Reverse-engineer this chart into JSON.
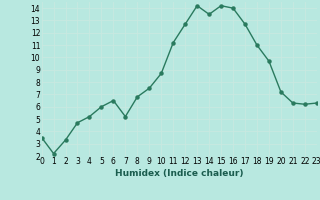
{
  "x": [
    0,
    1,
    2,
    3,
    4,
    5,
    6,
    7,
    8,
    9,
    10,
    11,
    12,
    13,
    14,
    15,
    16,
    17,
    18,
    19,
    20,
    21,
    22,
    23
  ],
  "y": [
    3.5,
    2.2,
    3.3,
    4.7,
    5.2,
    6.0,
    6.5,
    5.2,
    6.8,
    7.5,
    8.7,
    11.2,
    12.7,
    14.2,
    13.5,
    14.2,
    14.0,
    12.7,
    11.0,
    9.7,
    7.2,
    6.3,
    6.2,
    6.3
  ],
  "xlabel": "Humidex (Indice chaleur)",
  "ylim": [
    2,
    14.5
  ],
  "xlim": [
    0,
    23
  ],
  "yticks": [
    2,
    3,
    4,
    5,
    6,
    7,
    8,
    9,
    10,
    11,
    12,
    13,
    14
  ],
  "xticks": [
    0,
    1,
    2,
    3,
    4,
    5,
    6,
    7,
    8,
    9,
    10,
    11,
    12,
    13,
    14,
    15,
    16,
    17,
    18,
    19,
    20,
    21,
    22,
    23
  ],
  "line_color": "#2a7a5e",
  "bg_color": "#b8e8e0",
  "grid_color": "#d0ece8",
  "marker": "o",
  "markersize": 2.2,
  "linewidth": 1.0,
  "xlabel_fontsize": 6.5,
  "tick_fontsize": 5.5
}
